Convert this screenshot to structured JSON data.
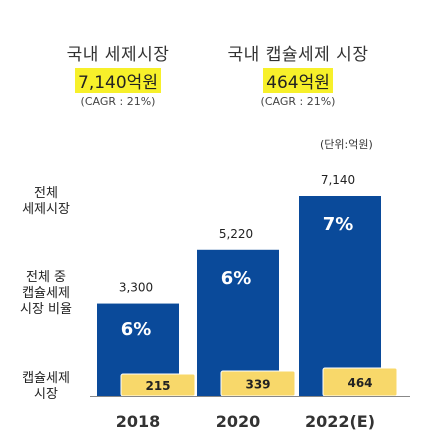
{
  "header": {
    "left": {
      "title": "국내 세제시장",
      "value": "7,140억원",
      "cagr": "(CAGR : 21%)"
    },
    "right": {
      "title": "국내 캡슐세제 시장",
      "value": "464억원",
      "cagr": "(CAGR : 21%)"
    }
  },
  "unit_label": "(단위:억원)",
  "row_labels": {
    "total": "전체\n세제시장",
    "ratio": "전체 중\n캡슐세제\n시장 비율",
    "capsule": "캡슐세제\n시장"
  },
  "colors": {
    "total_bar": "#0a4a9a",
    "capsule_bar": "#f8d86a",
    "highlight": "#f7f02a"
  },
  "chart_data": {
    "type": "bar",
    "categories": [
      "2018",
      "2020",
      "2022(E)"
    ],
    "series": [
      {
        "name": "전체 세제시장",
        "values": [
          3300,
          5220,
          7140
        ],
        "labels": [
          "3,300",
          "5,220",
          "7,140"
        ]
      },
      {
        "name": "캡슐세제 시장",
        "values": [
          215,
          339,
          464
        ],
        "labels": [
          "215",
          "339",
          "464"
        ]
      }
    ],
    "ratio_labels": [
      "6%",
      "6%",
      "7%"
    ],
    "ylim": [
      0,
      7140
    ],
    "grid": false,
    "legend": "none"
  }
}
